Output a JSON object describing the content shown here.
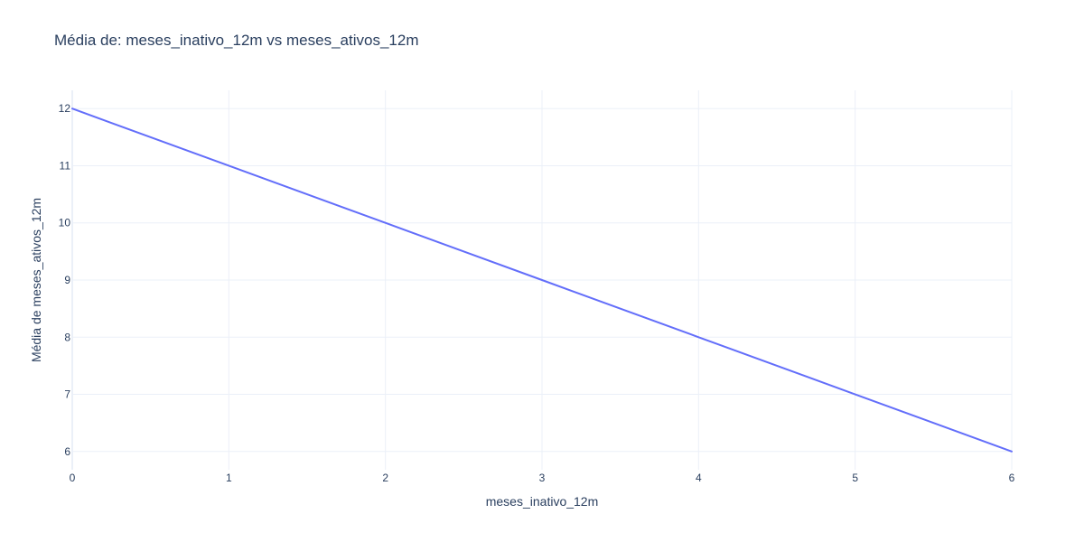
{
  "chart_data": {
    "type": "line",
    "title": "Média de: meses_inativo_12m vs meses_ativos_12m",
    "xlabel": "meses_inativo_12m",
    "ylabel": "Média de meses_ativos_12m",
    "xlim": [
      0,
      6
    ],
    "ylim": [
      5.68,
      12.32
    ],
    "grid": true,
    "x_ticks": [
      0,
      1,
      2,
      3,
      4,
      5,
      6
    ],
    "y_ticks": [
      6,
      7,
      8,
      9,
      10,
      11,
      12
    ],
    "series": [
      {
        "color": "#636efa",
        "x": [
          0,
          1,
          2,
          3,
          4,
          5,
          6
        ],
        "y": [
          12,
          11,
          10,
          9,
          8,
          7,
          6
        ]
      }
    ]
  }
}
